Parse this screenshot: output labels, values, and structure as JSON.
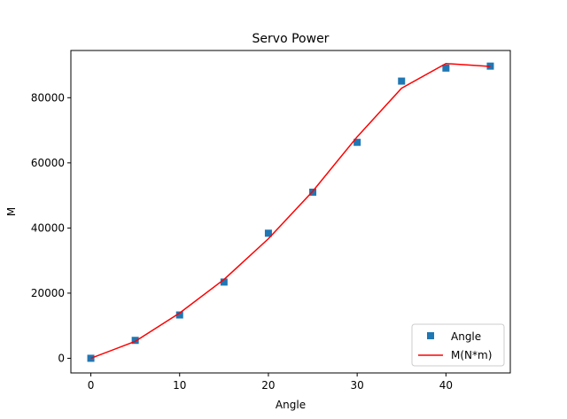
{
  "chart_data": {
    "type": "line",
    "title": "Servo Power",
    "xlabel": "Angle",
    "ylabel": "M",
    "xlim": [
      -2.25,
      47.25
    ],
    "ylim": [
      -4500,
      94500
    ],
    "xticks": [
      0,
      10,
      20,
      30,
      40
    ],
    "yticks": [
      0,
      20000,
      40000,
      60000,
      80000
    ],
    "grid": false,
    "legend_position": "lower-right",
    "series": [
      {
        "name": "Angle",
        "kind": "scatter",
        "marker": "square",
        "color": "#1f77b4",
        "x": [
          0,
          5,
          10,
          15,
          20,
          25,
          30,
          35,
          40,
          45
        ],
        "y": [
          0,
          5500,
          13300,
          23400,
          38400,
          51000,
          66300,
          85100,
          89100,
          89700
        ]
      },
      {
        "name": "M(N*m)",
        "kind": "line",
        "color": "#ff0000",
        "x": [
          0,
          5,
          10,
          15,
          20,
          25,
          30,
          35,
          40,
          45
        ],
        "y": [
          0,
          5200,
          13900,
          24200,
          36700,
          51300,
          68000,
          82900,
          90500,
          89600
        ]
      }
    ]
  }
}
